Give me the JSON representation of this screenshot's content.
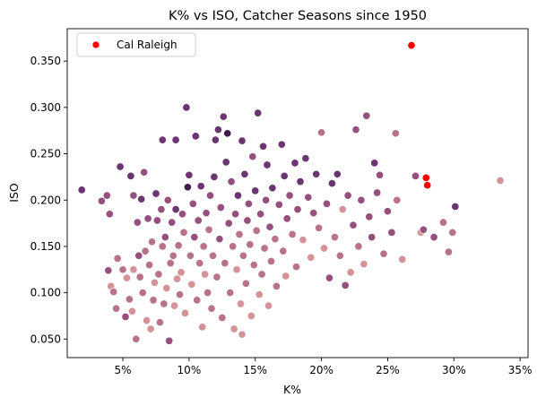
{
  "chart_data": {
    "type": "scatter",
    "title": "K% vs ISO, Catcher Seasons since 1950",
    "xlabel": "K%",
    "ylabel": "ISO",
    "xlim": [
      0.8,
      35.6
    ],
    "ylim": [
      0.03,
      0.385
    ],
    "x_ticks": [
      5,
      10,
      15,
      20,
      25,
      30,
      35
    ],
    "x_tick_labels": [
      "5%",
      "10%",
      "15%",
      "20%",
      "25%",
      "30%",
      "35%"
    ],
    "y_ticks": [
      0.05,
      0.1,
      0.15,
      0.2,
      0.25,
      0.3,
      0.35
    ],
    "y_tick_labels": [
      "0.050",
      "0.100",
      "0.150",
      "0.200",
      "0.250",
      "0.300",
      "0.350"
    ],
    "grid": false,
    "legend": {
      "position": "top-left",
      "entries": [
        {
          "label": "Cal Raleigh",
          "color": "#ff0000"
        }
      ]
    },
    "colors": {
      "highlight": "#ff0000",
      "palette": [
        "#e7b3ad",
        "#d49397",
        "#b8738a",
        "#96507d",
        "#6b3571",
        "#3e1a4c"
      ]
    },
    "series": [
      {
        "name": "Cal Raleigh",
        "color": "#ff0000",
        "points": [
          [
            26.8,
            0.367
          ],
          [
            27.9,
            0.224
          ],
          [
            28.0,
            0.216
          ]
        ]
      },
      {
        "name": "",
        "color_by_shade": true,
        "points": [
          [
            1.9,
            0.211,
            4
          ],
          [
            3.4,
            0.199,
            3
          ],
          [
            3.8,
            0.205,
            3
          ],
          [
            3.9,
            0.124,
            3
          ],
          [
            4.0,
            0.185,
            3
          ],
          [
            4.1,
            0.107,
            1
          ],
          [
            4.3,
            0.101,
            2
          ],
          [
            4.5,
            0.083,
            2
          ],
          [
            4.6,
            0.137,
            2
          ],
          [
            4.8,
            0.236,
            4
          ],
          [
            5.0,
            0.125,
            2
          ],
          [
            5.2,
            0.074,
            3
          ],
          [
            5.3,
            0.116,
            1
          ],
          [
            5.5,
            0.093,
            2
          ],
          [
            5.6,
            0.226,
            4
          ],
          [
            5.7,
            0.08,
            1
          ],
          [
            5.8,
            0.125,
            1
          ],
          [
            5.8,
            0.205,
            3
          ],
          [
            6.0,
            0.05,
            2
          ],
          [
            6.1,
            0.176,
            3
          ],
          [
            6.2,
            0.14,
            3
          ],
          [
            6.3,
            0.117,
            2
          ],
          [
            6.4,
            0.201,
            4
          ],
          [
            6.5,
            0.1,
            2
          ],
          [
            6.6,
            0.23,
            3
          ],
          [
            6.7,
            0.145,
            2
          ],
          [
            6.8,
            0.07,
            1
          ],
          [
            6.9,
            0.18,
            3
          ],
          [
            7.0,
            0.13,
            2
          ],
          [
            7.1,
            0.061,
            1
          ],
          [
            7.2,
            0.155,
            2
          ],
          [
            7.3,
            0.092,
            2
          ],
          [
            7.4,
            0.111,
            1
          ],
          [
            7.5,
            0.207,
            4
          ],
          [
            7.6,
            0.178,
            3
          ],
          [
            7.7,
            0.12,
            2
          ],
          [
            7.8,
            0.068,
            2
          ],
          [
            7.9,
            0.19,
            3
          ],
          [
            8.0,
            0.15,
            2
          ],
          [
            8.0,
            0.265,
            4
          ],
          [
            8.1,
            0.088,
            2
          ],
          [
            8.2,
            0.16,
            3
          ],
          [
            8.3,
            0.105,
            1
          ],
          [
            8.4,
            0.2,
            3
          ],
          [
            8.5,
            0.048,
            3
          ],
          [
            8.6,
            0.132,
            2
          ],
          [
            8.7,
            0.176,
            3
          ],
          [
            8.8,
            0.14,
            2
          ],
          [
            8.9,
            0.086,
            1
          ],
          [
            9.0,
            0.265,
            4
          ],
          [
            9.0,
            0.19,
            4
          ],
          [
            9.1,
            0.115,
            1
          ],
          [
            9.2,
            0.151,
            2
          ],
          [
            9.3,
            0.098,
            2
          ],
          [
            9.4,
            0.122,
            1
          ],
          [
            9.5,
            0.185,
            3
          ],
          [
            9.6,
            0.165,
            2
          ],
          [
            9.7,
            0.078,
            1
          ],
          [
            9.8,
            0.3,
            4
          ],
          [
            9.9,
            0.214,
            5
          ],
          [
            10.0,
            0.227,
            4
          ],
          [
            10.1,
            0.14,
            2
          ],
          [
            10.2,
            0.109,
            1
          ],
          [
            10.3,
            0.196,
            3
          ],
          [
            10.4,
            0.16,
            3
          ],
          [
            10.5,
            0.269,
            4
          ],
          [
            10.6,
            0.092,
            2
          ],
          [
            10.7,
            0.178,
            3
          ],
          [
            10.8,
            0.132,
            2
          ],
          [
            10.9,
            0.215,
            4
          ],
          [
            11.0,
            0.063,
            1
          ],
          [
            11.1,
            0.15,
            2
          ],
          [
            11.2,
            0.12,
            1
          ],
          [
            11.3,
            0.186,
            3
          ],
          [
            11.4,
            0.1,
            2
          ],
          [
            11.5,
            0.168,
            2
          ],
          [
            11.6,
            0.205,
            3
          ],
          [
            11.7,
            0.083,
            2
          ],
          [
            11.8,
            0.14,
            2
          ],
          [
            11.9,
            0.225,
            4
          ],
          [
            12.0,
            0.265,
            4
          ],
          [
            12.1,
            0.117,
            2
          ],
          [
            12.2,
            0.276,
            4
          ],
          [
            12.3,
            0.158,
            3
          ],
          [
            12.4,
            0.192,
            3
          ],
          [
            12.5,
            0.073,
            2
          ],
          [
            12.6,
            0.29,
            4
          ],
          [
            12.7,
            0.132,
            2
          ],
          [
            12.8,
            0.241,
            4
          ],
          [
            12.9,
            0.272,
            5
          ],
          [
            13.0,
            0.175,
            3
          ],
          [
            13.1,
            0.1,
            2
          ],
          [
            13.2,
            0.22,
            3
          ],
          [
            13.3,
            0.15,
            2
          ],
          [
            13.4,
            0.061,
            1
          ],
          [
            13.5,
            0.185,
            3
          ],
          [
            13.6,
            0.125,
            1
          ],
          [
            13.7,
            0.205,
            4
          ],
          [
            13.8,
            0.163,
            2
          ],
          [
            13.9,
            0.088,
            1
          ],
          [
            14.0,
            0.264,
            4
          ],
          [
            14.0,
            0.055,
            1
          ],
          [
            14.1,
            0.14,
            2
          ],
          [
            14.2,
            0.228,
            4
          ],
          [
            14.3,
            0.11,
            2
          ],
          [
            14.4,
            0.178,
            3
          ],
          [
            14.5,
            0.196,
            3
          ],
          [
            14.6,
            0.152,
            2
          ],
          [
            14.7,
            0.075,
            1
          ],
          [
            14.8,
            0.247,
            3
          ],
          [
            14.9,
            0.13,
            2
          ],
          [
            15.0,
            0.21,
            4
          ],
          [
            15.1,
            0.167,
            2
          ],
          [
            15.2,
            0.294,
            4
          ],
          [
            15.3,
            0.098,
            1
          ],
          [
            15.4,
            0.185,
            3
          ],
          [
            15.5,
            0.12,
            2
          ],
          [
            15.6,
            0.258,
            4
          ],
          [
            15.7,
            0.148,
            2
          ],
          [
            15.8,
            0.2,
            3
          ],
          [
            15.9,
            0.238,
            4
          ],
          [
            16.0,
            0.086,
            1
          ],
          [
            16.1,
            0.171,
            3
          ],
          [
            16.2,
            0.134,
            2
          ],
          [
            16.3,
            0.213,
            4
          ],
          [
            16.5,
            0.158,
            2
          ],
          [
            16.6,
            0.107,
            2
          ],
          [
            16.8,
            0.195,
            3
          ],
          [
            17.0,
            0.26,
            4
          ],
          [
            17.1,
            0.145,
            2
          ],
          [
            17.2,
            0.226,
            4
          ],
          [
            17.3,
            0.118,
            1
          ],
          [
            17.4,
            0.18,
            3
          ],
          [
            17.6,
            0.205,
            3
          ],
          [
            17.8,
            0.163,
            2
          ],
          [
            18.0,
            0.24,
            4
          ],
          [
            18.1,
            0.128,
            2
          ],
          [
            18.2,
            0.19,
            3
          ],
          [
            18.4,
            0.22,
            4
          ],
          [
            18.6,
            0.157,
            1
          ],
          [
            18.8,
            0.245,
            4
          ],
          [
            19.0,
            0.203,
            3
          ],
          [
            19.2,
            0.138,
            1
          ],
          [
            19.4,
            0.186,
            3
          ],
          [
            19.6,
            0.228,
            4
          ],
          [
            19.8,
            0.17,
            2
          ],
          [
            20.0,
            0.273,
            2
          ],
          [
            20.2,
            0.148,
            1
          ],
          [
            20.4,
            0.196,
            3
          ],
          [
            20.6,
            0.116,
            3
          ],
          [
            20.8,
            0.218,
            4
          ],
          [
            21.0,
            0.16,
            2
          ],
          [
            21.2,
            0.228,
            4
          ],
          [
            21.4,
            0.14,
            2
          ],
          [
            21.6,
            0.19,
            1
          ],
          [
            21.8,
            0.108,
            3
          ],
          [
            22.0,
            0.205,
            3
          ],
          [
            22.2,
            0.122,
            1
          ],
          [
            22.4,
            0.173,
            3
          ],
          [
            22.6,
            0.276,
            3
          ],
          [
            22.8,
            0.15,
            2
          ],
          [
            23.0,
            0.2,
            3
          ],
          [
            23.2,
            0.131,
            1
          ],
          [
            23.4,
            0.291,
            3
          ],
          [
            23.6,
            0.182,
            3
          ],
          [
            23.8,
            0.16,
            3
          ],
          [
            24.0,
            0.24,
            4
          ],
          [
            24.2,
            0.208,
            3
          ],
          [
            24.4,
            0.227,
            3
          ],
          [
            24.7,
            0.142,
            2
          ],
          [
            25.0,
            0.188,
            3
          ],
          [
            25.3,
            0.165,
            3
          ],
          [
            25.6,
            0.272,
            2
          ],
          [
            25.7,
            0.2,
            2
          ],
          [
            26.1,
            0.136,
            1
          ],
          [
            27.1,
            0.226,
            3
          ],
          [
            27.5,
            0.165,
            1
          ],
          [
            27.7,
            0.168,
            3
          ],
          [
            28.5,
            0.16,
            3
          ],
          [
            29.2,
            0.176,
            2
          ],
          [
            29.6,
            0.144,
            2
          ],
          [
            29.9,
            0.165,
            2
          ],
          [
            30.1,
            0.193,
            4
          ],
          [
            33.5,
            0.221,
            1
          ]
        ]
      }
    ]
  }
}
